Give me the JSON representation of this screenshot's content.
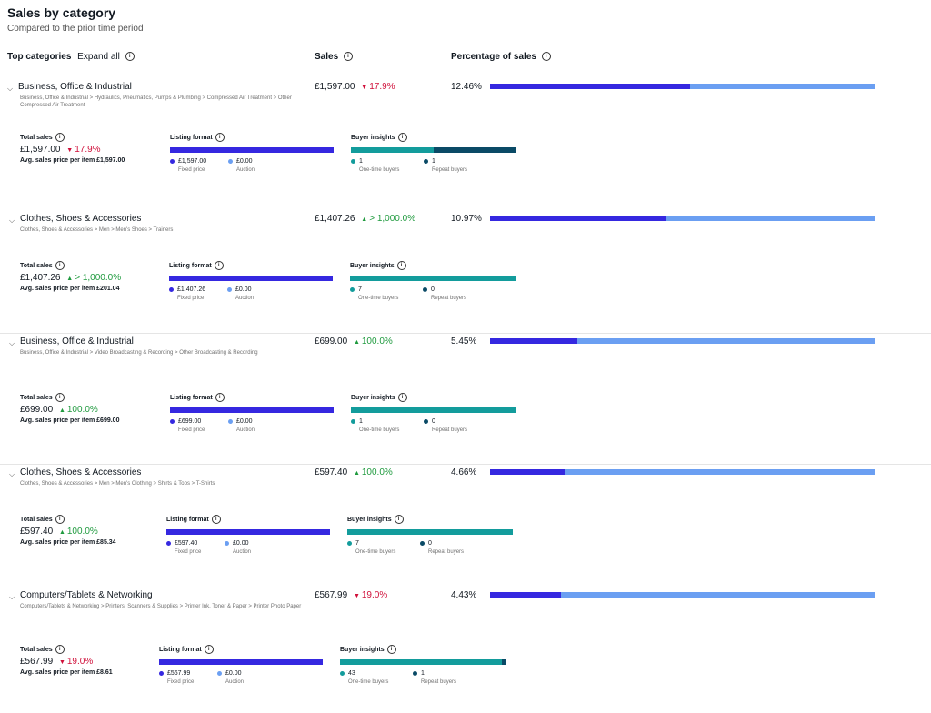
{
  "header": {
    "title": "Sales by category",
    "subtitle": "Compared to the prior time period"
  },
  "columns": {
    "top_categories": "Top categories",
    "expand_all": "Expand all",
    "sales": "Sales",
    "percentage": "Percentage of sales"
  },
  "labels": {
    "total_sales": "Total sales",
    "listing_format": "Listing format",
    "buyer_insights": "Buyer insights",
    "fixed_price": "Fixed price",
    "auction": "Auction",
    "one_time_buyers": "One-time buyers",
    "repeat_buyers": "Repeat buyers"
  },
  "colors": {
    "fixed_price": "#3528e0",
    "auction": "#6b9ff2",
    "one_time": "#139c9c",
    "repeat": "#0a4a66",
    "up": "#1f9a3e",
    "down": "#d0103a"
  },
  "categories": [
    {
      "name": "Business, Office & Industrial",
      "path": "Business, Office & Industrial > Hydraulics, Pneumatics, Pumps & Plumbing > Compressed Air Treatment > Other Compressed Air Treatment",
      "sales": "£1,597.00",
      "delta": "17.9%",
      "direction": "down",
      "pct": "12.46%",
      "pct_value": 0.1246,
      "avg": "Avg. sales price per item £1,597.00",
      "fixed": "£1,597.00",
      "auction": "£0.00",
      "fixed_share": 1.0,
      "one_time": "1",
      "repeat": "1",
      "one_time_share": 0.5
    },
    {
      "name": "Clothes, Shoes & Accessories",
      "path": "Clothes, Shoes & Accessories > Men > Men's Shoes > Trainers",
      "sales": "£1,407.26",
      "delta": "> 1,000.0%",
      "direction": "up",
      "pct": "10.97%",
      "pct_value": 0.1097,
      "avg": "Avg. sales price per item £201.04",
      "fixed": "£1,407.26",
      "auction": "£0.00",
      "fixed_share": 1.0,
      "one_time": "7",
      "repeat": "0",
      "one_time_share": 1.0
    },
    {
      "name": "Business, Office & Industrial",
      "path": "Business, Office & Industrial > Video Broadcasting & Recording > Other Broadcasting & Recording",
      "sales": "£699.00",
      "delta": "100.0%",
      "direction": "up",
      "pct": "5.45%",
      "pct_value": 0.0545,
      "avg": "Avg. sales price per item £699.00",
      "fixed": "£699.00",
      "auction": "£0.00",
      "fixed_share": 1.0,
      "one_time": "1",
      "repeat": "0",
      "one_time_share": 1.0
    },
    {
      "name": "Clothes, Shoes & Accessories",
      "path": "Clothes, Shoes & Accessories > Men > Men's Clothing > Shirts & Tops > T-Shirts",
      "sales": "£597.40",
      "delta": "100.0%",
      "direction": "up",
      "pct": "4.66%",
      "pct_value": 0.0466,
      "avg": "Avg. sales price per item £85.34",
      "fixed": "£597.40",
      "auction": "£0.00",
      "fixed_share": 1.0,
      "one_time": "7",
      "repeat": "0",
      "one_time_share": 1.0
    },
    {
      "name": "Computers/Tablets & Networking",
      "path": "Computers/Tablets & Networking > Printers, Scanners & Supplies > Printer Ink, Toner & Paper > Printer Photo Paper",
      "sales": "£567.99",
      "delta": "19.0%",
      "direction": "down",
      "pct": "4.43%",
      "pct_value": 0.0443,
      "avg": "Avg. sales price per item £8.61",
      "fixed": "£567.99",
      "auction": "£0.00",
      "fixed_share": 1.0,
      "one_time": "43",
      "repeat": "1",
      "one_time_share": 0.977
    }
  ]
}
